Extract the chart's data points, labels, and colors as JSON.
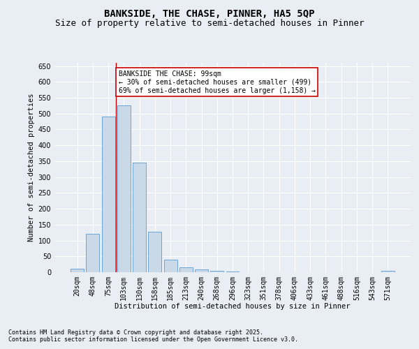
{
  "title": "BANKSIDE, THE CHASE, PINNER, HA5 5QP",
  "subtitle": "Size of property relative to semi-detached houses in Pinner",
  "xlabel": "Distribution of semi-detached houses by size in Pinner",
  "ylabel": "Number of semi-detached properties",
  "footnote1": "Contains HM Land Registry data © Crown copyright and database right 2025.",
  "footnote2": "Contains public sector information licensed under the Open Government Licence v3.0.",
  "annotation_title": "BANKSIDE THE CHASE: 99sqm",
  "annotation_line1": "← 30% of semi-detached houses are smaller (499)",
  "annotation_line2": "69% of semi-detached houses are larger (1,158) →",
  "categories": [
    "20sqm",
    "48sqm",
    "75sqm",
    "103sqm",
    "130sqm",
    "158sqm",
    "185sqm",
    "213sqm",
    "240sqm",
    "268sqm",
    "296sqm",
    "323sqm",
    "351sqm",
    "378sqm",
    "406sqm",
    "433sqm",
    "461sqm",
    "488sqm",
    "516sqm",
    "543sqm",
    "571sqm"
  ],
  "values": [
    10,
    120,
    490,
    525,
    345,
    128,
    40,
    16,
    8,
    5,
    3,
    1,
    1,
    0,
    0,
    0,
    0,
    0,
    0,
    0,
    4
  ],
  "bar_color": "#c9d9e8",
  "bar_edge_color": "#5b9bd5",
  "vline_x_idx": 2.5,
  "vline_color": "#cc0000",
  "ylim": [
    0,
    660
  ],
  "yticks": [
    0,
    50,
    100,
    150,
    200,
    250,
    300,
    350,
    400,
    450,
    500,
    550,
    600,
    650
  ],
  "background_color": "#e8eef4",
  "plot_bg_color": "#e8eef4",
  "grid_color": "#ffffff",
  "annotation_box_color": "#ffffff",
  "annotation_box_edge": "#cc0000",
  "title_fontsize": 10,
  "subtitle_fontsize": 9,
  "axis_label_fontsize": 7.5,
  "tick_fontsize": 7,
  "annotation_fontsize": 7,
  "footnote_fontsize": 6
}
